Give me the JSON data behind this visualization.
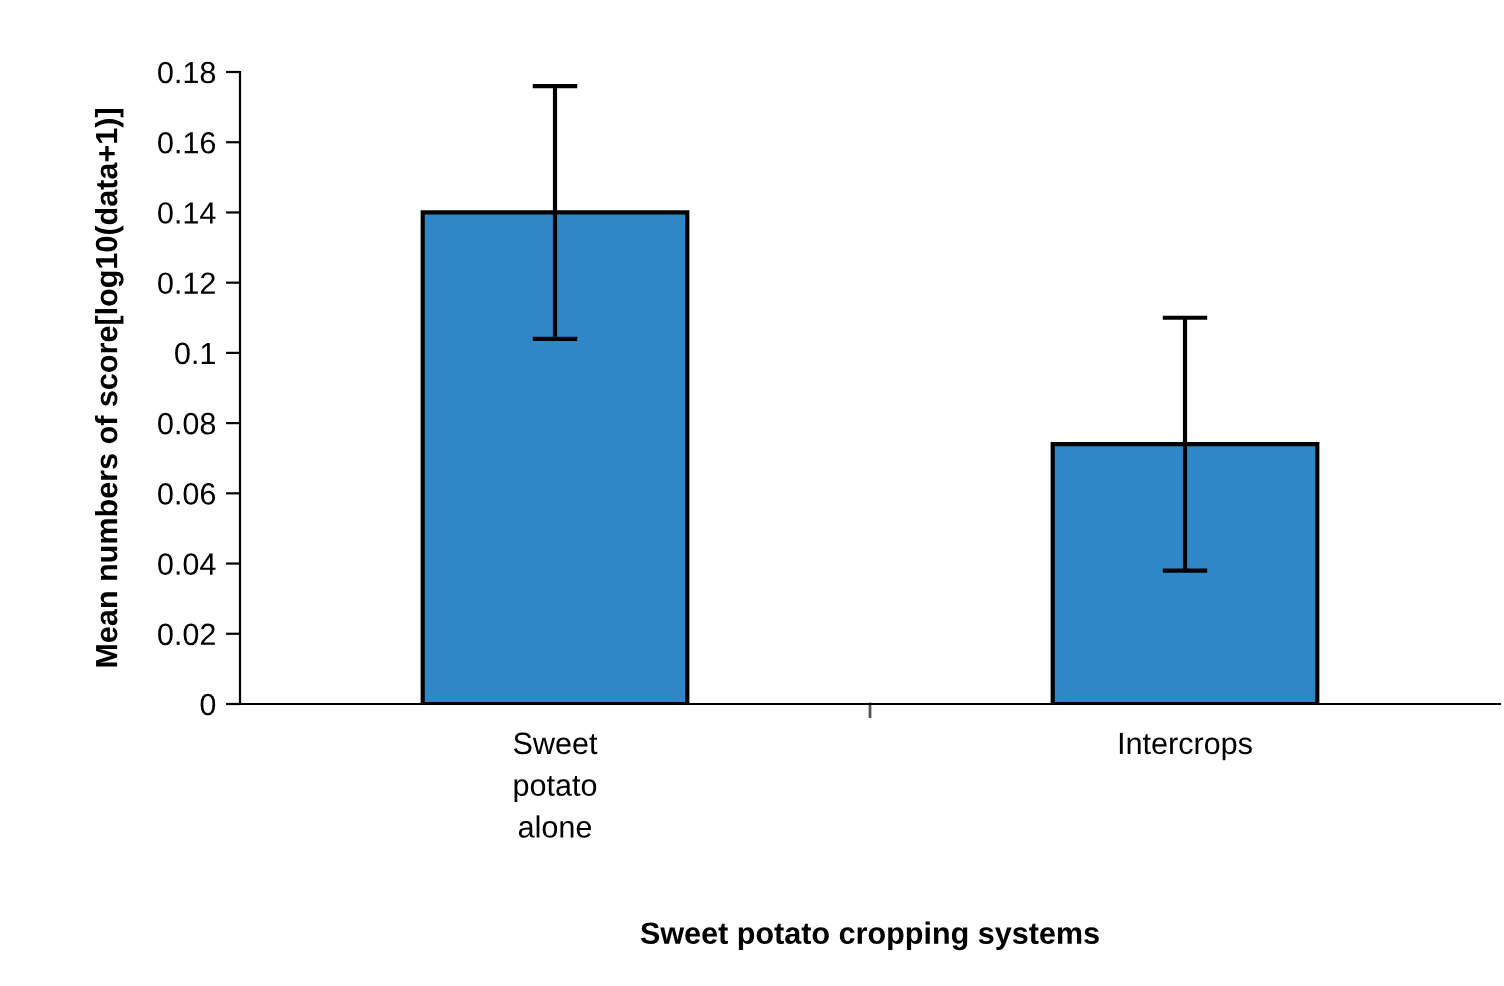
{
  "chart_data": {
    "type": "bar",
    "xlabel": "Sweet potato cropping systems",
    "ylabel": "Mean numbers of score[log10(data+1)]",
    "categories": [
      "Sweet potato alone",
      "Intercrops"
    ],
    "values": [
      0.14,
      0.074
    ],
    "errors": [
      0.036,
      0.036
    ],
    "color": "#2f87c8",
    "ylim": [
      0,
      0.18
    ],
    "yticks": [
      0,
      0.02,
      0.04,
      0.06,
      0.08,
      {
        "value": 0.1,
        "label": "0.1"
      },
      0.12,
      0.14,
      0.16,
      0.18
    ],
    "grid": false
  }
}
